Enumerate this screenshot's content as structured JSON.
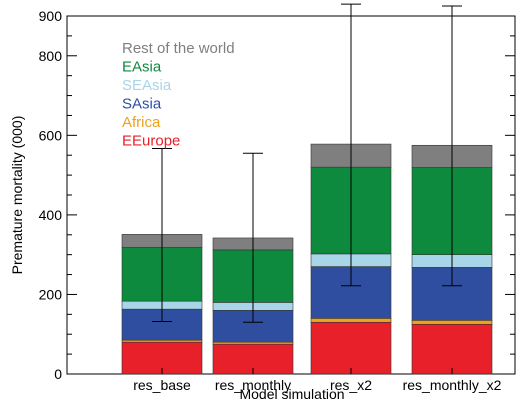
{
  "chart_data": {
    "type": "bar",
    "stacked": true,
    "xlabel": "Model simulation",
    "ylabel": "Premature mortality (000)",
    "ylim": [
      0,
      900
    ],
    "yticks": [
      0,
      200,
      400,
      600,
      800,
      900
    ],
    "categories": [
      "res_base",
      "res_monthly",
      "res_x2",
      "res_monthly_x2"
    ],
    "series": [
      {
        "name": "EEurope",
        "color": "#e8202a",
        "values": [
          80,
          75,
          130,
          125
        ]
      },
      {
        "name": "Africa",
        "color": "#f0a020",
        "values": [
          5,
          5,
          10,
          10
        ]
      },
      {
        "name": "SAsia",
        "color": "#2f4ea0",
        "values": [
          78,
          80,
          130,
          133
        ]
      },
      {
        "name": "SEAsia",
        "color": "#a8d5e8",
        "values": [
          20,
          20,
          32,
          32
        ]
      },
      {
        "name": "EAsia",
        "color": "#0e8a3e",
        "values": [
          135,
          132,
          218,
          219
        ]
      },
      {
        "name": "Rest of the world",
        "color": "#7f7f7f",
        "values": [
          33,
          30,
          58,
          56
        ]
      }
    ],
    "error_bars": [
      {
        "low": 132,
        "high": 567
      },
      {
        "low": 130,
        "high": 555
      },
      {
        "low": 222,
        "high": 930
      },
      {
        "low": 222,
        "high": 925
      }
    ],
    "legend_order": [
      "Rest of the world",
      "EAsia",
      "SEAsia",
      "SAsia",
      "Africa",
      "EEurope"
    ],
    "legend_placement": "top-left inside plot",
    "grid": false
  }
}
